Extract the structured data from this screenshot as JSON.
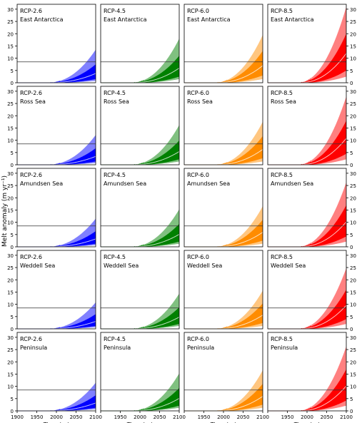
{
  "figure": {
    "ylabel": "Melt anomaly (m yr⁻¹)",
    "xlabel": "Time (yr)",
    "reference_line_value": 8.5
  },
  "chart_data": {
    "type": "area",
    "layout": "grid 5 rows (regions) x 4 columns (scenarios), shared axes",
    "scenarios": [
      {
        "label": "RCP-2.6",
        "color": "#0000ff",
        "median_2100": 3.8,
        "inner_2100": [
          1.5,
          7.5
        ],
        "outer_2100": [
          0.8,
          13.5
        ],
        "onset": 1975
      },
      {
        "label": "RCP-4.5",
        "color": "#008000",
        "median_2100": 6.0,
        "inner_2100": [
          2.5,
          11.0
        ],
        "outer_2100": [
          1.5,
          18.0
        ],
        "onset": 1975
      },
      {
        "label": "RCP-6.0",
        "color": "#ff8c00",
        "median_2100": 7.0,
        "inner_2100": [
          3.0,
          13.0
        ],
        "outer_2100": [
          1.5,
          19.5
        ],
        "onset": 1975
      },
      {
        "label": "RCP-8.5",
        "color": "#ff0000",
        "median_2100": 12.0,
        "inner_2100": [
          5.0,
          20.0
        ],
        "outer_2100": [
          2.5,
          31.0
        ],
        "onset": 1975
      }
    ],
    "regions": [
      {
        "name": "East Antarctica",
        "scale": 1.0
      },
      {
        "name": "Ross Sea",
        "scale": 0.9
      },
      {
        "name": "Amundsen Sea",
        "scale": 0.85
      },
      {
        "name": "Weddell Sea",
        "scale": 0.8
      },
      {
        "name": "Peninsula",
        "scale": 0.85
      }
    ],
    "x_ticks": [
      1900,
      1950,
      2000,
      2050,
      2100
    ],
    "xlim": [
      1900,
      2100
    ],
    "y_ticks": [
      0,
      5,
      10,
      15,
      20,
      25,
      30
    ],
    "ylim": [
      0,
      32
    ],
    "grid": false,
    "legend": "none (scenario label printed top-left of each panel)"
  }
}
